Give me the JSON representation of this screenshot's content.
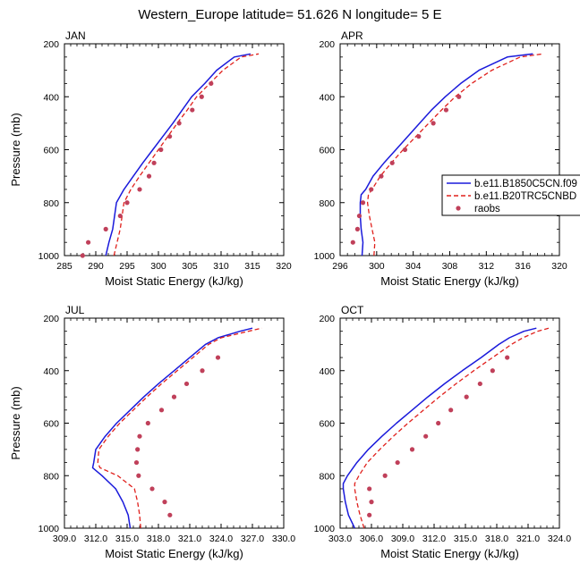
{
  "title": "Western_Europe  latitude= 51.626 N longitude= 5 E",
  "legend": {
    "entries": [
      {
        "label": "b.e11.B1850C5CN.f09",
        "color": "#1a1adb",
        "style": "solid",
        "kind": "line"
      },
      {
        "label": "b.e11.B20TRC5CNBD",
        "color": "#e0201c",
        "style": "dashed",
        "kind": "line"
      },
      {
        "label": "raobs",
        "color": "#c0405a",
        "style": "marker",
        "kind": "marker"
      }
    ]
  },
  "chart_data": [
    {
      "type": "line",
      "panel": "JAN",
      "title": "JAN",
      "xlabel": "Moist Static Energy (kJ/kg)",
      "ylabel": "Pressure (mb)",
      "xlim": [
        285,
        320
      ],
      "xticks": [
        285,
        290,
        295,
        300,
        305,
        310,
        315,
        320
      ],
      "xtick_labels": [
        "285",
        "290",
        "295",
        "300",
        "305",
        "310",
        "315",
        "320"
      ],
      "ylim": [
        200,
        1000
      ],
      "yticks": [
        200,
        400,
        600,
        800,
        1000
      ],
      "ytick_labels": [
        "200",
        "400",
        "600",
        "800",
        "1000"
      ],
      "series": [
        {
          "name": "b.e11.B1850C5CN.f09",
          "pressure": [
            1000,
            950,
            900,
            850,
            800,
            750,
            700,
            650,
            600,
            550,
            500,
            450,
            400,
            350,
            300,
            250,
            238
          ],
          "values": [
            291.6,
            292.1,
            292.7,
            293.0,
            293.3,
            294.5,
            296.0,
            297.5,
            299.1,
            300.7,
            302.3,
            303.8,
            305.3,
            307.4,
            309.3,
            312.1,
            314.7
          ]
        },
        {
          "name": "b.e11.B20TRC5CNBD",
          "pressure": [
            1000,
            950,
            900,
            850,
            800,
            750,
            700,
            650,
            600,
            550,
            500,
            450,
            400,
            350,
            300,
            250,
            238
          ],
          "values": [
            292.9,
            293.4,
            293.9,
            294.2,
            294.5,
            295.6,
            297.0,
            298.5,
            300.0,
            301.5,
            303.0,
            304.6,
            306.1,
            308.2,
            310.3,
            313.2,
            316.0
          ]
        },
        {
          "name": "raobs",
          "pressure": [
            1000,
            950,
            900,
            850,
            800,
            750,
            700,
            650,
            600,
            550,
            500,
            450,
            400,
            350
          ],
          "values": [
            287.9,
            288.8,
            291.6,
            293.9,
            295.0,
            297.0,
            298.5,
            299.3,
            300.4,
            301.8,
            303.3,
            305.4,
            306.9,
            308.4
          ]
        }
      ]
    },
    {
      "type": "line",
      "panel": "APR",
      "title": "APR",
      "xlabel": "Moist Static Energy (kJ/kg)",
      "ylabel": "",
      "xlim": [
        296,
        320
      ],
      "xticks": [
        296,
        300,
        304,
        308,
        312,
        316,
        320
      ],
      "xtick_labels": [
        "296",
        "300",
        "304",
        "308",
        "312",
        "316",
        "320"
      ],
      "ylim": [
        200,
        1000
      ],
      "yticks": [
        200,
        400,
        600,
        800,
        1000
      ],
      "ytick_labels": [
        "200",
        "400",
        "600",
        "800",
        "1000"
      ],
      "series": [
        {
          "name": "b.e11.B1850C5CN.f09",
          "pressure": [
            1000,
            950,
            900,
            850,
            800,
            770,
            750,
            700,
            650,
            600,
            550,
            500,
            450,
            400,
            350,
            300,
            250,
            238
          ],
          "values": [
            298.4,
            298.5,
            298.3,
            298.2,
            298.2,
            298.3,
            298.8,
            299.6,
            300.8,
            302.1,
            303.4,
            304.7,
            306.0,
            307.5,
            309.2,
            311.2,
            314.3,
            317.1
          ]
        },
        {
          "name": "b.e11.B20TRC5CNBD",
          "pressure": [
            1000,
            950,
            900,
            850,
            800,
            770,
            750,
            700,
            650,
            600,
            550,
            500,
            450,
            400,
            350,
            300,
            250,
            238
          ],
          "values": [
            299.7,
            299.8,
            299.5,
            299.2,
            299.0,
            299.1,
            299.5,
            300.4,
            301.6,
            302.9,
            304.3,
            305.7,
            307.1,
            308.6,
            310.4,
            312.6,
            315.7,
            318.2
          ]
        },
        {
          "name": "raobs",
          "pressure": [
            950,
            900,
            850,
            800,
            750,
            700,
            650,
            600,
            550,
            500,
            450,
            400
          ],
          "values": [
            297.4,
            297.9,
            298.1,
            298.5,
            299.4,
            300.5,
            301.7,
            303.1,
            304.6,
            306.2,
            307.6,
            309.0
          ]
        }
      ]
    },
    {
      "type": "line",
      "panel": "JUL",
      "title": "JUL",
      "xlabel": "Moist Static Energy (kJ/kg)",
      "ylabel": "Pressure (mb)",
      "xlim": [
        309,
        330
      ],
      "xticks": [
        309,
        312,
        315,
        318,
        321,
        324,
        327,
        330
      ],
      "xtick_labels": [
        "309.0",
        "312.0",
        "315.0",
        "318.0",
        "321.0",
        "324.0",
        "327.0",
        "330.0"
      ],
      "ylim": [
        200,
        1000
      ],
      "yticks": [
        200,
        400,
        600,
        800,
        1000
      ],
      "ytick_labels": [
        "200",
        "400",
        "600",
        "800",
        "1000"
      ],
      "series": [
        {
          "name": "b.e11.B1850C5CN.f09",
          "pressure": [
            1000,
            950,
            900,
            850,
            800,
            770,
            750,
            700,
            650,
            600,
            550,
            500,
            450,
            400,
            350,
            300,
            275,
            250,
            238
          ],
          "values": [
            315.3,
            315.1,
            314.6,
            313.9,
            312.6,
            311.7,
            311.8,
            312.0,
            312.9,
            314.0,
            315.3,
            316.6,
            318.0,
            319.5,
            321.0,
            322.5,
            323.7,
            325.8,
            327.0
          ]
        },
        {
          "name": "b.e11.B20TRC5CNBD",
          "pressure": [
            1000,
            950,
            900,
            850,
            800,
            770,
            750,
            700,
            650,
            600,
            550,
            500,
            450,
            400,
            350,
            300,
            275,
            250,
            238
          ],
          "values": [
            316.3,
            316.2,
            316.0,
            315.7,
            314.1,
            312.4,
            312.2,
            312.3,
            313.2,
            314.3,
            315.6,
            316.9,
            318.3,
            319.8,
            321.3,
            322.8,
            324.0,
            326.6,
            327.9
          ]
        },
        {
          "name": "raobs",
          "pressure": [
            950,
            900,
            850,
            800,
            750,
            700,
            650,
            600,
            550,
            500,
            450,
            400,
            350
          ],
          "values": [
            319.1,
            318.6,
            317.4,
            316.1,
            315.9,
            316.0,
            316.2,
            317.0,
            318.3,
            319.5,
            320.7,
            322.2,
            323.7
          ]
        }
      ]
    },
    {
      "type": "line",
      "panel": "OCT",
      "title": "OCT",
      "xlabel": "Moist Static Energy (kJ/kg)",
      "ylabel": "",
      "xlim": [
        303,
        324
      ],
      "xticks": [
        303,
        306,
        309,
        312,
        315,
        318,
        321,
        324
      ],
      "xtick_labels": [
        "303.0",
        "306.0",
        "309.0",
        "312.0",
        "315.0",
        "318.0",
        "321.0",
        "324.0"
      ],
      "ylim": [
        200,
        1000
      ],
      "yticks": [
        200,
        400,
        600,
        800,
        1000
      ],
      "ytick_labels": [
        "200",
        "400",
        "600",
        "800",
        "1000"
      ],
      "series": [
        {
          "name": "b.e11.B1850C5CN.f09",
          "pressure": [
            1000,
            950,
            900,
            850,
            830,
            800,
            750,
            700,
            650,
            600,
            550,
            500,
            450,
            400,
            350,
            300,
            275,
            250,
            238
          ],
          "values": [
            304.4,
            303.8,
            303.5,
            303.3,
            303.3,
            303.7,
            304.6,
            305.7,
            307.0,
            308.4,
            309.9,
            311.4,
            313.0,
            314.7,
            316.5,
            318.2,
            319.2,
            320.6,
            321.8
          ]
        },
        {
          "name": "b.e11.B20TRC5CNBD",
          "pressure": [
            1000,
            950,
            900,
            850,
            830,
            800,
            750,
            700,
            650,
            600,
            550,
            500,
            450,
            400,
            350,
            300,
            275,
            250,
            238
          ],
          "values": [
            305.3,
            304.9,
            304.6,
            304.4,
            304.4,
            304.8,
            305.6,
            306.8,
            308.1,
            309.5,
            311.0,
            312.5,
            314.1,
            315.8,
            317.6,
            319.4,
            320.5,
            321.9,
            323.0
          ]
        },
        {
          "name": "raobs",
          "pressure": [
            950,
            900,
            850,
            800,
            750,
            700,
            650,
            600,
            550,
            500,
            450,
            400,
            350
          ],
          "values": [
            305.8,
            306.0,
            305.8,
            307.3,
            308.5,
            309.9,
            311.2,
            312.4,
            313.6,
            315.1,
            316.4,
            317.6,
            319.0
          ]
        }
      ]
    }
  ]
}
